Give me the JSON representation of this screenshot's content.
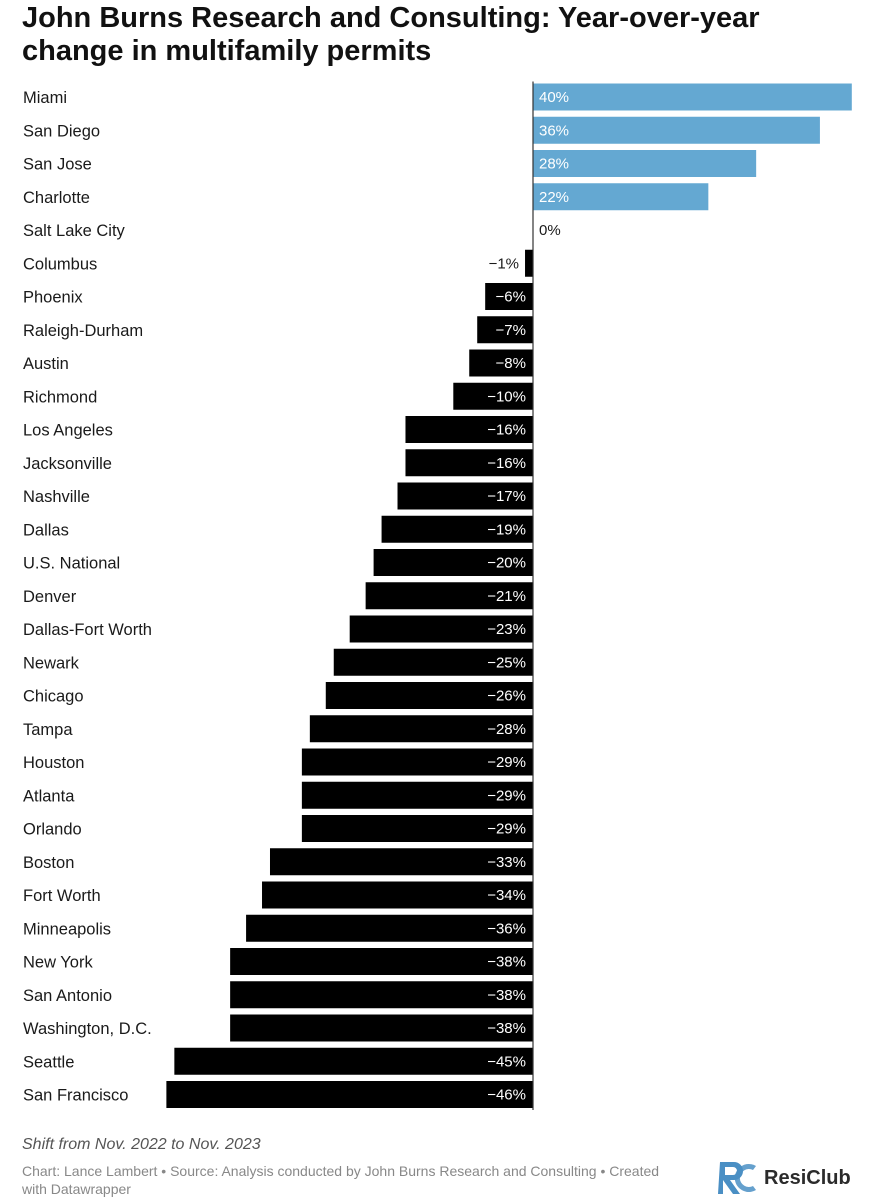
{
  "title": "John Burns Research and Consulting: Year-over-year change in multifamily permits",
  "subtitle": "Shift from Nov. 2022 to Nov. 2023",
  "source": "Chart: Lance Lambert • Source: Analysis conducted by John Burns Research and Consulting • Created with Datawrapper",
  "brand": "ResiClub",
  "colors": {
    "positive": "#64a8d2",
    "negative": "#000000",
    "label_on_bar": "#ffffff",
    "label_off_bar": "#1a1a1a",
    "brand_blue": "#4a8fc4"
  },
  "chart_data": {
    "type": "bar",
    "orientation": "horizontal",
    "categories": [
      "Miami",
      "San Diego",
      "San Jose",
      "Charlotte",
      "Salt Lake City",
      "Columbus",
      "Phoenix",
      "Raleigh-Durham",
      "Austin",
      "Richmond",
      "Los Angeles",
      "Jacksonville",
      "Nashville",
      "Dallas",
      "U.S. National",
      "Denver",
      "Dallas-Fort Worth",
      "Newark",
      "Chicago",
      "Tampa",
      "Houston",
      "Atlanta",
      "Orlando",
      "Boston",
      "Fort Worth",
      "Minneapolis",
      "New York",
      "San Antonio",
      "Washington, D.C.",
      "Seattle",
      "San Francisco"
    ],
    "values": [
      40,
      36,
      28,
      22,
      0,
      -1,
      -6,
      -7,
      -8,
      -10,
      -16,
      -16,
      -17,
      -19,
      -20,
      -21,
      -23,
      -25,
      -26,
      -28,
      -29,
      -29,
      -29,
      -33,
      -34,
      -36,
      -38,
      -38,
      -38,
      -45,
      -46
    ],
    "value_labels": [
      "40%",
      "36%",
      "28%",
      "22%",
      "0%",
      "−1%",
      "−6%",
      "−7%",
      "−8%",
      "−10%",
      "−16%",
      "−16%",
      "−17%",
      "−19%",
      "−20%",
      "−21%",
      "−23%",
      "−25%",
      "−26%",
      "−28%",
      "−29%",
      "−29%",
      "−29%",
      "−33%",
      "−34%",
      "−36%",
      "−38%",
      "−38%",
      "−38%",
      "−45%",
      "−46%"
    ],
    "xlim": [
      -46,
      40
    ],
    "unit": "%",
    "grid": false,
    "legend": "none"
  }
}
